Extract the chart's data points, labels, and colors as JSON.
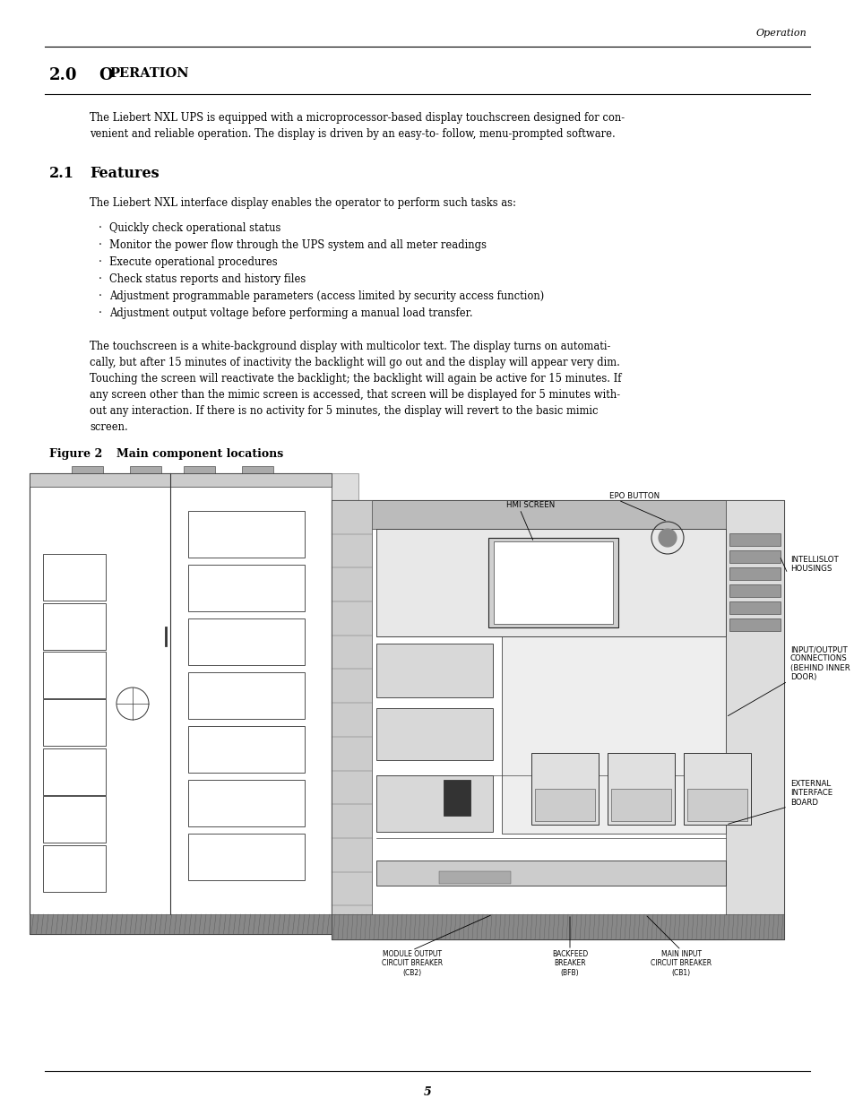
{
  "bg_color": "#ffffff",
  "page_width": 9.54,
  "page_height": 12.35,
  "top_header_italic": "Operation",
  "para1_lines": [
    "The Liebert NXL UPS is equipped with a microprocessor-based display touchscreen designed for con-",
    "venient and reliable operation. The display is driven by an easy-to- follow, menu-prompted software."
  ],
  "sub_para1": "The Liebert NXL interface display enables the operator to perform such tasks as:",
  "bullets": [
    "Quickly check operational status",
    "Monitor the power flow through the UPS system and all meter readings",
    "Execute operational procedures",
    "Check status reports and history files",
    "Adjustment programmable parameters (access limited by security access function)",
    "Adjustment output voltage before performing a manual load transfer."
  ],
  "para2_lines": [
    "The touchscreen is a white-background display with multicolor text. The display turns on automati-",
    "cally, but after 15 minutes of inactivity the backlight will go out and the display will appear very dim.",
    "Touching the screen will reactivate the backlight; the backlight will again be active for 15 minutes. If",
    "any screen other than the mimic screen is accessed, that screen will be displayed for 5 minutes with-",
    "out any interaction. If there is no activity for 5 minutes, the display will revert to the basic mimic",
    "screen."
  ],
  "page_number": "5"
}
